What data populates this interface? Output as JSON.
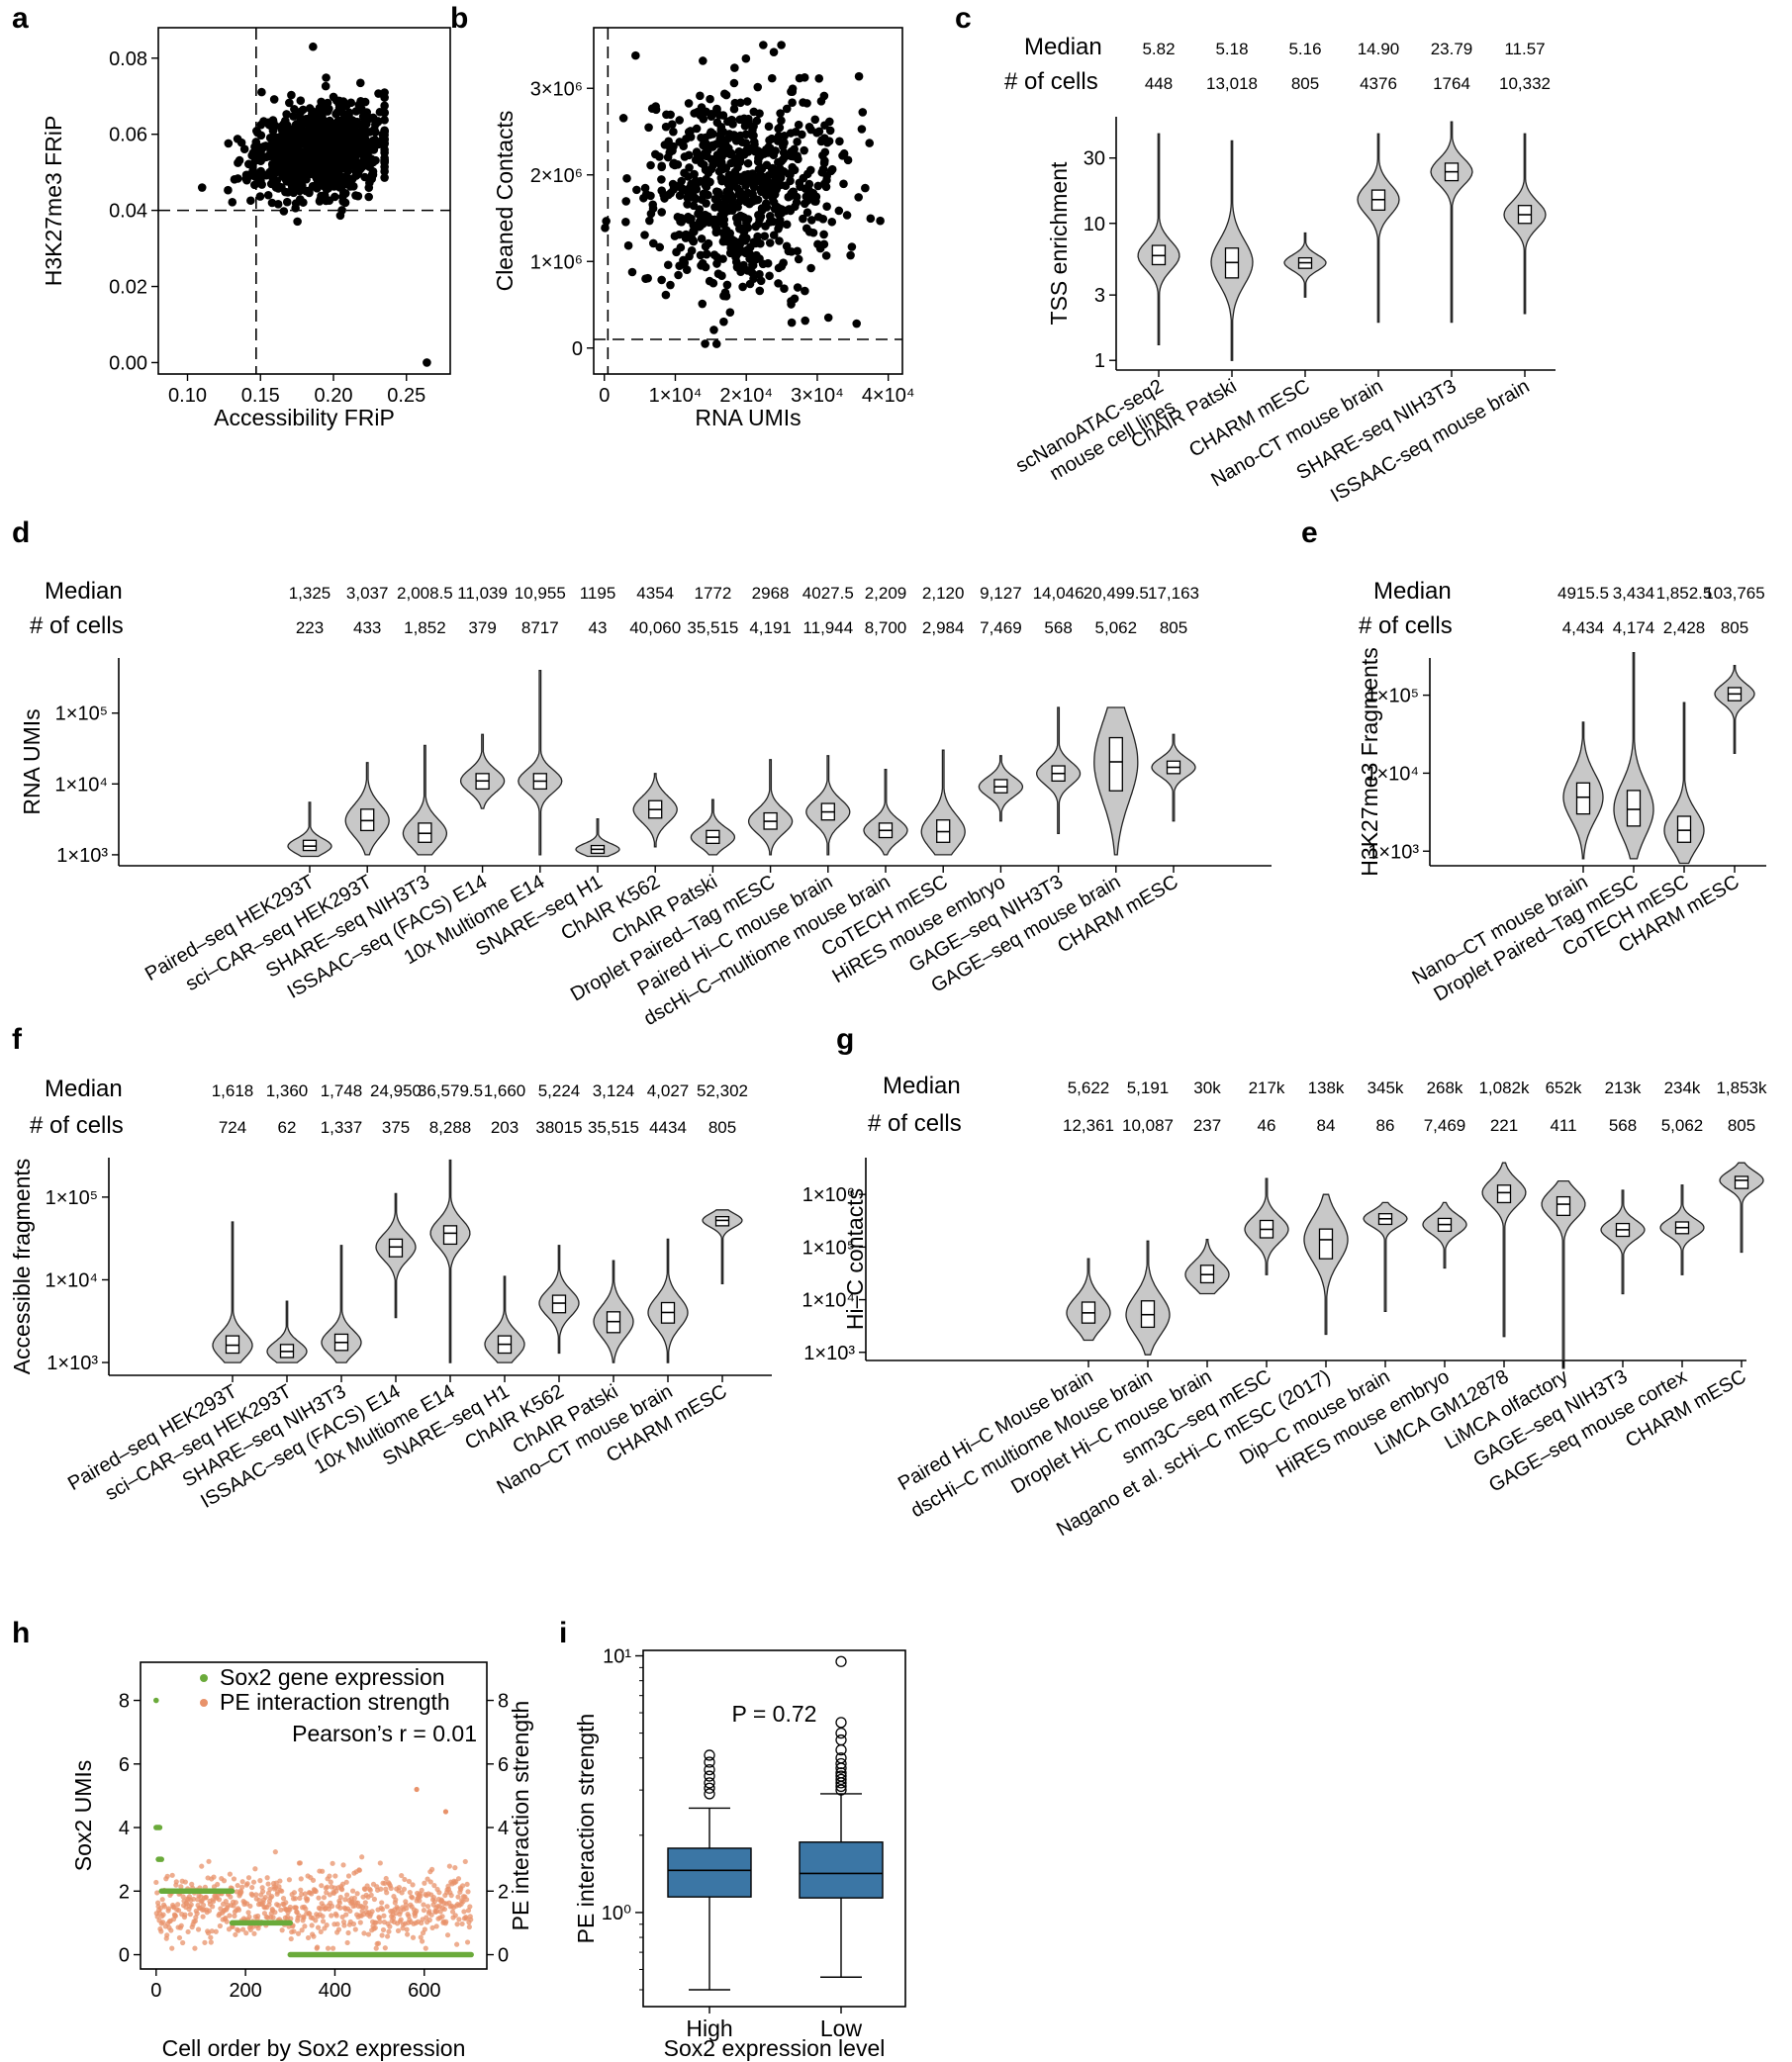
{
  "chart_data": [
    {
      "panel": "a",
      "type": "scatter",
      "xlabel": "Accessibility FRiP",
      "ylabel": "H3K27me3 FRiP",
      "xlim": [
        0.08,
        0.28
      ],
      "ylim": [
        -0.003,
        0.088
      ],
      "xticks": [
        0.1,
        0.15,
        0.2,
        0.25
      ],
      "xtick_labels": [
        "0.10",
        "0.15",
        "0.20",
        "0.25"
      ],
      "yticks": [
        0.0,
        0.02,
        0.04,
        0.06,
        0.08
      ],
      "ytick_labels": [
        "0.00",
        "0.02",
        "0.04",
        "0.06",
        "0.08"
      ],
      "cutoff_x": 0.147,
      "cutoff_y": 0.04,
      "cluster": {
        "center": [
          0.19,
          0.056
        ],
        "x_spread": 0.022,
        "y_spread": 0.006,
        "n": 900
      },
      "highlight_points": [
        {
          "x": 0.186,
          "y": 0.083
        },
        {
          "x": 0.264,
          "y": 0.0
        },
        {
          "x": 0.11,
          "y": 0.046
        }
      ]
    },
    {
      "panel": "b",
      "type": "scatter",
      "xlabel": "RNA UMIs",
      "ylabel": "Cleaned Contacts",
      "xlim": [
        -1500,
        42000
      ],
      "ylim": [
        -300000,
        3700000
      ],
      "xticks": [
        0,
        10000,
        20000,
        30000,
        40000
      ],
      "xtick_labels": [
        "0",
        "1×10⁴",
        "2×10⁴",
        "3×10⁴",
        "4×10⁴"
      ],
      "yticks": [
        0,
        1000000,
        2000000,
        3000000
      ],
      "ytick_labels": [
        "0",
        "1×10⁶",
        "2×10⁶",
        "3×10⁶"
      ],
      "cutoff_x": 500,
      "cutoff_y": 100000,
      "cluster": {
        "center": [
          19000,
          1850000
        ],
        "x_spread": 7000,
        "y_spread": 600000,
        "n": 700
      }
    },
    {
      "panel": "c",
      "type": "violin",
      "title_rows": {
        "median_label": "Median",
        "cells_label": "# of cells"
      },
      "ylabel": "TSS enrichment",
      "scale": "log10",
      "ylim": [
        0.85,
        60
      ],
      "yticks": [
        1,
        3,
        10,
        30
      ],
      "ytick_labels": [
        "1",
        "3",
        "10",
        "30"
      ],
      "categories": [
        "scNanoATAC-seq2\nmouse cell lines",
        "ChAIR Patski",
        "CHARM mESC",
        "Nano-CT mouse brain",
        "SHARE-seq NIH3T3",
        "ISSAAC-seq mouse brain"
      ],
      "medians_text": [
        "5.82",
        "5.18",
        "5.16",
        "14.90",
        "23.79",
        "11.57"
      ],
      "cells_text": [
        "448",
        "13,018",
        "805",
        "4376",
        "1764",
        "10,332"
      ],
      "medians": [
        5.82,
        5.18,
        5.16,
        14.9,
        23.79,
        11.57
      ],
      "min": [
        1.3,
        1.0,
        2.9,
        1.9,
        1.9,
        2.2
      ],
      "max": [
        45,
        40,
        8.5,
        45,
        55,
        45
      ],
      "q1": [
        5.0,
        4.0,
        4.7,
        12.5,
        20.5,
        10.0
      ],
      "q3": [
        6.9,
        6.6,
        5.6,
        17.5,
        27.5,
        13.5
      ]
    },
    {
      "panel": "d",
      "type": "violin",
      "title_rows": {
        "median_label": "Median",
        "cells_label": "# of cells"
      },
      "ylabel": "RNA UMIs",
      "scale": "log10",
      "ylim": [
        700,
        600000
      ],
      "yticks": [
        1000,
        10000,
        100000
      ],
      "ytick_labels": [
        "1×10³",
        "1×10⁴",
        "1×10⁵"
      ],
      "categories": [
        "Paired–seq HEK293T",
        "sci–CAR–seq HEK293T",
        "SHARE–seq NIH3T3",
        "ISSAAC–seq (FACS) E14",
        "10x Multiome E14",
        "SNARE–seq H1",
        "ChAIR K562",
        "ChAIR Patski",
        "Droplet Paired–Tag mESC",
        "Paired Hi–C mouse brain",
        "dscHi–C–multiome mouse brain",
        "CoTECH mESC",
        "HiRES mouse embryo",
        "GAGE–seq NIH3T3",
        "GAGE–seq mouse brain",
        "CHARM mESC"
      ],
      "medians_text": [
        "1,325",
        "3,037",
        "2,008.5",
        "11,039",
        "10,955",
        "1195",
        "4354",
        "1772",
        "2968",
        "4027.5",
        "2,209",
        "2,120",
        "9,127",
        "14,046",
        "20,499.5",
        "17,163"
      ],
      "cells_text": [
        "223",
        "433",
        "1,852",
        "379",
        "8717",
        "43",
        "40,060",
        "35,515",
        "4,191",
        "11,944",
        "8,700",
        "2,984",
        "7,469",
        "568",
        "5,062",
        "805"
      ],
      "medians": [
        1325,
        3037,
        2008.5,
        11039,
        10955,
        1195,
        4354,
        1772,
        2968,
        4027.5,
        2209,
        2120,
        9127,
        14046,
        20499.5,
        17163
      ],
      "min": [
        950,
        1000,
        1000,
        4500,
        1000,
        950,
        1300,
        1000,
        1000,
        1000,
        1000,
        1000,
        3000,
        2000,
        1000,
        3000
      ],
      "max": [
        5500,
        20000,
        35000,
        50000,
        400000,
        3200,
        14000,
        6000,
        22000,
        25000,
        16000,
        30000,
        25000,
        120000,
        120000,
        50000
      ],
      "q1": [
        1150,
        2200,
        1500,
        8500,
        8500,
        1050,
        3300,
        1450,
        2300,
        3100,
        1750,
        1500,
        7500,
        11000,
        8000,
        14000
      ],
      "q3": [
        1600,
        4400,
        2800,
        14000,
        14000,
        1350,
        5800,
        2200,
        3900,
        5300,
        2800,
        3100,
        11500,
        18000,
        45000,
        21000
      ]
    },
    {
      "panel": "e",
      "type": "violin",
      "title_rows": {
        "median_label": "Median",
        "cells_label": "# of cells"
      },
      "ylabel": "H3K27me3 Fragments",
      "scale": "log10",
      "ylim": [
        650,
        300000
      ],
      "yticks": [
        1000,
        10000,
        100000
      ],
      "ytick_labels": [
        "1×10³",
        "1×10⁴",
        "1×10⁵"
      ],
      "categories": [
        "Nano–CT mouse brain",
        "Droplet Paired–Tag mESC",
        "CoTECH mESC",
        "CHARM mESC"
      ],
      "medians_text": [
        "4915.5",
        "3,434",
        "1,852.5",
        "103,765"
      ],
      "cells_text": [
        "4,434",
        "4,174",
        "2,428",
        "805"
      ],
      "medians": [
        4915.5,
        3434,
        1852.5,
        103765
      ],
      "min": [
        800,
        800,
        700,
        18000
      ],
      "max": [
        45000,
        350000,
        80000,
        240000
      ],
      "q1": [
        3000,
        2100,
        1300,
        85000
      ],
      "q3": [
        7500,
        6000,
        2800,
        125000
      ]
    },
    {
      "panel": "f",
      "type": "violin",
      "title_rows": {
        "median_label": "Median",
        "cells_label": "# of cells"
      },
      "ylabel": "Accessible fragments",
      "scale": "log10",
      "ylim": [
        700,
        300000
      ],
      "yticks": [
        1000,
        10000,
        100000
      ],
      "ytick_labels": [
        "1×10³",
        "1×10⁴",
        "1×10⁵"
      ],
      "categories": [
        "Paired–seq HEK293T",
        "sci–CAR–seq HEK293T",
        "SHARE–seq NIH3T3",
        "ISSAAC–seq (FACS) E14",
        "10x Multiome E14",
        "SNARE–seq H1",
        "ChAIR K562",
        "ChAIR Patski",
        "Nano–CT mouse brain",
        "CHARM mESC"
      ],
      "medians_text": [
        "1,618",
        "1,360",
        "1,748",
        "24,950",
        "36,579.5",
        "1,660",
        "5,224",
        "3,124",
        "4,027",
        "52,302"
      ],
      "cells_text": [
        "724",
        "62",
        "1,337",
        "375",
        "8,288",
        "203",
        "38015",
        "35,515",
        "4434",
        "805"
      ],
      "medians": [
        1618,
        1360,
        1748,
        24950,
        36579.5,
        1660,
        5224,
        3124,
        4027,
        52302
      ],
      "min": [
        1000,
        1000,
        1000,
        3500,
        1000,
        1000,
        1300,
        1000,
        1000,
        9000
      ],
      "max": [
        50000,
        5500,
        26000,
        110000,
        280000,
        11000,
        26000,
        17000,
        31000,
        70000
      ],
      "q1": [
        1300,
        1150,
        1400,
        19000,
        27000,
        1300,
        4000,
        2300,
        3000,
        45000
      ],
      "q3": [
        2100,
        1650,
        2200,
        31000,
        45000,
        2100,
        6500,
        4100,
        5300,
        58000
      ]
    },
    {
      "panel": "g",
      "type": "violin",
      "title_rows": {
        "median_label": "Median",
        "cells_label": "# of cells"
      },
      "ylabel": "Hi–C contacts",
      "scale": "log10",
      "ylim": [
        700,
        5000000
      ],
      "yticks": [
        1000,
        10000,
        100000,
        1000000
      ],
      "ytick_labels": [
        "1×10³",
        "1×10⁴",
        "1×10⁵",
        "1×10⁶"
      ],
      "categories": [
        "Paired Hi–C Mouse brain",
        "dscHi–C multiome Mouse brain",
        "Droplet Hi–C mouse brain",
        "snm3C–seq mESC",
        "Nagano et al. scHi–C mESC (2017)",
        "Dip–C mouse brain",
        "HiRES mouse embryo",
        "LiMCA GM12878",
        "LiMCA olfactory",
        "GAGE–seq NIH3T3",
        "GAGE–seq mouse cortex",
        "CHARM mESC"
      ],
      "medians_text": [
        "5,622",
        "5,191",
        "30k",
        "217k",
        "138k",
        "345k",
        "268k",
        "1,082k",
        "652k",
        "213k",
        "234k",
        "1,853k"
      ],
      "cells_text": [
        "12,361",
        "10,087",
        "237",
        "46",
        "84",
        "86",
        "7,469",
        "221",
        "411",
        "568",
        "5,062",
        "805"
      ],
      "medians": [
        5622,
        5191,
        30000,
        217000,
        138000,
        345000,
        268000,
        1082000,
        652000,
        213000,
        234000,
        1853000
      ],
      "min": [
        1700,
        900,
        13000,
        30000,
        2200,
        6000,
        40000,
        2000,
        500,
        13000,
        30000,
        80000
      ],
      "max": [
        60000,
        130000,
        140000,
        2000000,
        1000000,
        700000,
        700000,
        4000000,
        1800000,
        1200000,
        1500000,
        4000000
      ],
      "q1": [
        3600,
        3000,
        21000,
        150000,
        60000,
        270000,
        200000,
        700000,
        400000,
        160000,
        180000,
        1300000
      ],
      "q3": [
        9000,
        9500,
        45000,
        320000,
        220000,
        430000,
        350000,
        1500000,
        900000,
        280000,
        300000,
        2200000
      ]
    },
    {
      "panel": "h",
      "type": "scatter",
      "xlabel": "Cell order by Sox2 expression",
      "ylabel": "Sox2 UMIs",
      "y2label": "PE interaction strength",
      "xlim": [
        -35,
        740
      ],
      "ylim": [
        -0.45,
        9.2
      ],
      "xticks": [
        0,
        200,
        400,
        600
      ],
      "xtick_labels": [
        "0",
        "200",
        "400",
        "600"
      ],
      "yticks": [
        0,
        2,
        4,
        6,
        8
      ],
      "ytick_labels": [
        "0",
        "2",
        "4",
        "6",
        "8"
      ],
      "y2ticks": [
        0,
        2,
        4,
        6,
        8
      ],
      "y2tick_labels": [
        "0",
        "2",
        "4",
        "6",
        "8"
      ],
      "legend": [
        "Sox2 gene expression",
        "PE interaction strength"
      ],
      "legend_position": "top-right",
      "annotation": "Pearson’s r = 0.01",
      "series": [
        {
          "name": "Sox2 gene expression",
          "color": "#6aaa3a",
          "segments": [
            {
              "x": [
                0,
                0
              ],
              "y": 8
            },
            {
              "x": [
                0,
                8
              ],
              "y": 4
            },
            {
              "x": [
                5,
                12
              ],
              "y": 3
            },
            {
              "x": [
                12,
                170
              ],
              "y": 2
            },
            {
              "x": [
                170,
                300
              ],
              "y": 1
            },
            {
              "x": [
                300,
                705
              ],
              "y": 0
            }
          ]
        },
        {
          "name": "PE interaction strength",
          "color": "#e8926a",
          "center": 1.55,
          "n": 700,
          "outliers": [
            {
              "x": 583,
              "y": 5.2
            },
            {
              "x": 648,
              "y": 4.5
            }
          ]
        }
      ]
    },
    {
      "panel": "i",
      "type": "box",
      "xlabel": "Sox2 expression level",
      "ylabel": "PE interaction strength",
      "scale": "log10",
      "ylim": [
        0.43,
        10.5
      ],
      "yticks": [
        1,
        10
      ],
      "ytick_labels": [
        "10⁰",
        "10¹"
      ],
      "categories": [
        "High",
        "Low"
      ],
      "annotation": "P = 0.72",
      "color": "#3b76a5",
      "boxes": [
        {
          "q1": 1.15,
          "median": 1.46,
          "q3": 1.78,
          "whisker_low": 0.5,
          "whisker_high": 2.55,
          "fliers": [
            2.9,
            3.05,
            3.2,
            3.4,
            3.6,
            3.85,
            4.1
          ]
        },
        {
          "q1": 1.14,
          "median": 1.42,
          "q3": 1.88,
          "whisker_low": 0.56,
          "whisker_high": 2.9,
          "fliers": [
            3.0,
            3.1,
            3.2,
            3.3,
            3.4,
            3.5,
            3.65,
            3.8,
            4.0,
            4.3,
            4.7,
            5.0,
            5.5,
            9.5
          ]
        }
      ]
    }
  ]
}
